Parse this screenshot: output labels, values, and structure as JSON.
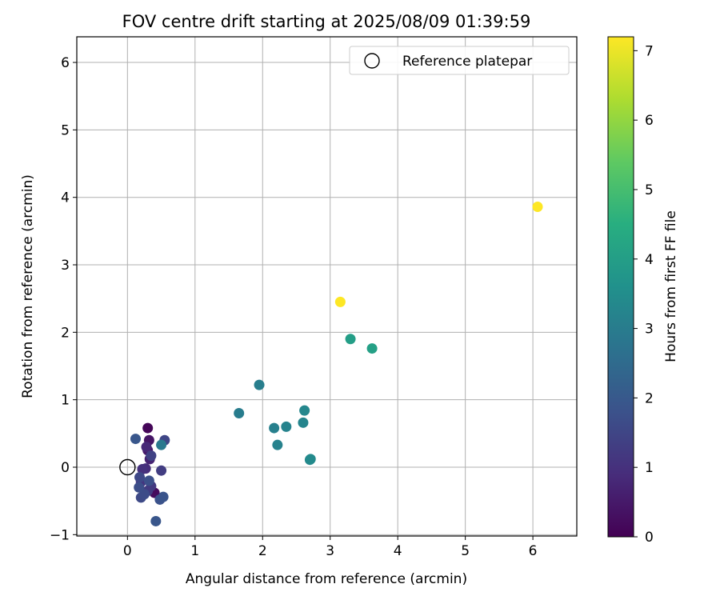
{
  "chart_data": {
    "type": "scatter",
    "title": "FOV centre drift starting at 2025/08/09 01:39:59",
    "xlabel": "Angular distance from reference (arcmin)",
    "ylabel": "Rotation from reference (arcmin)",
    "xlim": [
      -0.75,
      6.65
    ],
    "ylim": [
      -1.02,
      6.38
    ],
    "xticks": [
      0,
      1,
      2,
      3,
      4,
      5,
      6
    ],
    "yticks": [
      -1,
      0,
      1,
      2,
      3,
      4,
      5,
      6
    ],
    "xtick_labels": [
      "0",
      "1",
      "2",
      "3",
      "4",
      "5",
      "6"
    ],
    "ytick_labels": [
      "−1",
      "0",
      "1",
      "2",
      "3",
      "4",
      "5",
      "6"
    ],
    "grid": true,
    "legend": {
      "position": "top-right",
      "entries": [
        "Reference platepar"
      ]
    },
    "reference_point": {
      "x": 0,
      "y": 0,
      "marker": "open-circle",
      "label": "Reference platepar"
    },
    "colorbar": {
      "label": "Hours from first FF file",
      "min": 0,
      "max": 7.2,
      "ticks": [
        0,
        1,
        2,
        3,
        4,
        5,
        6,
        7
      ],
      "tick_labels": [
        "0",
        "1",
        "2",
        "3",
        "4",
        "5",
        "6",
        "7"
      ],
      "colormap": "viridis"
    },
    "points": [
      {
        "x": 0.3,
        "y": 0.58,
        "hours": 0.1
      },
      {
        "x": 0.4,
        "y": -0.38,
        "hours": 0.2
      },
      {
        "x": 0.32,
        "y": 0.4,
        "hours": 0.4
      },
      {
        "x": 0.3,
        "y": 0.25,
        "hours": 0.5
      },
      {
        "x": 0.33,
        "y": 0.12,
        "hours": 0.7
      },
      {
        "x": 0.28,
        "y": 0.3,
        "hours": 0.8
      },
      {
        "x": 0.27,
        "y": -0.02,
        "hours": 0.9
      },
      {
        "x": 0.22,
        "y": -0.03,
        "hours": 1.0
      },
      {
        "x": 0.2,
        "y": -0.22,
        "hours": 1.1
      },
      {
        "x": 0.35,
        "y": -0.28,
        "hours": 1.2
      },
      {
        "x": 0.3,
        "y": -0.35,
        "hours": 1.25
      },
      {
        "x": 0.5,
        "y": -0.05,
        "hours": 1.3
      },
      {
        "x": 0.35,
        "y": 0.17,
        "hours": 1.4
      },
      {
        "x": 0.55,
        "y": 0.4,
        "hours": 1.5
      },
      {
        "x": 0.18,
        "y": -0.15,
        "hours": 1.55
      },
      {
        "x": 0.2,
        "y": -0.45,
        "hours": 1.6
      },
      {
        "x": 0.25,
        "y": -0.4,
        "hours": 1.65
      },
      {
        "x": 0.17,
        "y": -0.3,
        "hours": 1.7
      },
      {
        "x": 0.32,
        "y": -0.2,
        "hours": 1.75
      },
      {
        "x": 0.48,
        "y": -0.48,
        "hours": 1.8
      },
      {
        "x": 0.53,
        "y": -0.44,
        "hours": 1.85
      },
      {
        "x": 0.42,
        "y": -0.8,
        "hours": 1.9
      },
      {
        "x": 0.12,
        "y": 0.42,
        "hours": 1.95
      },
      {
        "x": 0.5,
        "y": 0.33,
        "hours": 2.9
      },
      {
        "x": 1.65,
        "y": 0.8,
        "hours": 3.0
      },
      {
        "x": 1.95,
        "y": 1.22,
        "hours": 3.05
      },
      {
        "x": 2.17,
        "y": 0.58,
        "hours": 3.1
      },
      {
        "x": 2.22,
        "y": 0.33,
        "hours": 3.15
      },
      {
        "x": 2.35,
        "y": 0.6,
        "hours": 3.2
      },
      {
        "x": 2.6,
        "y": 0.66,
        "hours": 3.25
      },
      {
        "x": 2.62,
        "y": 0.84,
        "hours": 3.3
      },
      {
        "x": 2.7,
        "y": 0.11,
        "hours": 3.35
      },
      {
        "x": 2.71,
        "y": 0.12,
        "hours": 3.4
      },
      {
        "x": 3.3,
        "y": 1.9,
        "hours": 4.0
      },
      {
        "x": 3.62,
        "y": 1.76,
        "hours": 4.05
      },
      {
        "x": 3.15,
        "y": 2.45,
        "hours": 7.2
      },
      {
        "x": 6.07,
        "y": 3.86,
        "hours": 7.2
      }
    ]
  }
}
